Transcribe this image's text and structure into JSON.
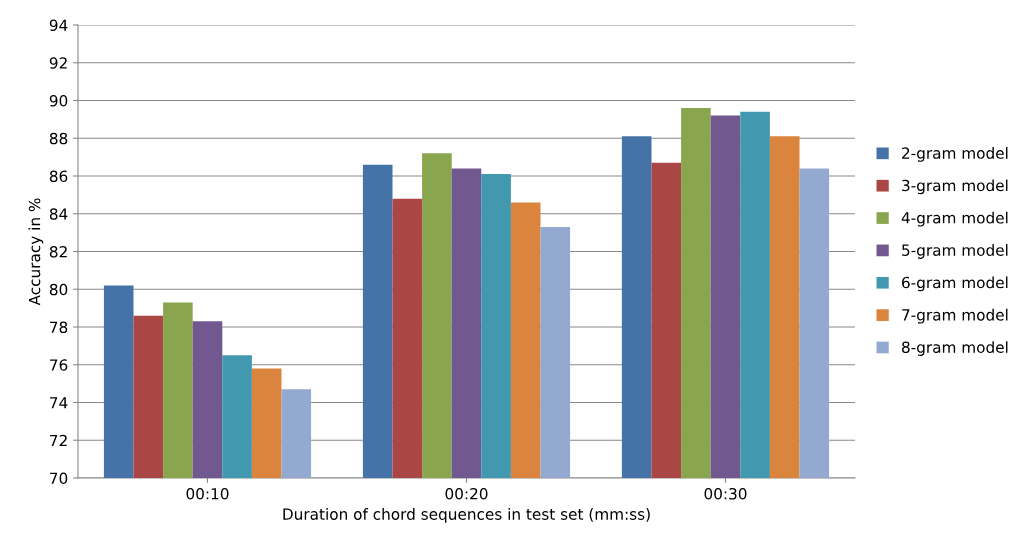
{
  "chart_data": {
    "type": "bar",
    "xlabel": "Duration of chord sequences in test set (mm:ss)",
    "ylabel": "Accuracy in %",
    "categories": [
      "00:10",
      "00:20",
      "00:30"
    ],
    "series": [
      {
        "name": "2-gram model",
        "color": "#4572a7",
        "values": [
          80.2,
          86.6,
          88.1
        ]
      },
      {
        "name": "3-gram model",
        "color": "#aa4643",
        "values": [
          78.6,
          84.8,
          86.7
        ]
      },
      {
        "name": "4-gram model",
        "color": "#89a54e",
        "values": [
          79.3,
          87.2,
          89.6
        ]
      },
      {
        "name": "5-gram model",
        "color": "#71588f",
        "values": [
          78.3,
          86.4,
          89.2
        ]
      },
      {
        "name": "6-gram model",
        "color": "#4198af",
        "values": [
          76.5,
          86.1,
          89.4
        ]
      },
      {
        "name": "7-gram model",
        "color": "#db843d",
        "values": [
          75.8,
          84.6,
          88.1
        ]
      },
      {
        "name": "8-gram model",
        "color": "#93a9cf",
        "values": [
          74.7,
          83.3,
          86.4
        ]
      }
    ],
    "ylim": [
      70,
      94
    ],
    "yticks": [
      70,
      72,
      74,
      76,
      78,
      80,
      82,
      84,
      86,
      88,
      90,
      92,
      94
    ],
    "grid": "y",
    "legend": "right"
  }
}
